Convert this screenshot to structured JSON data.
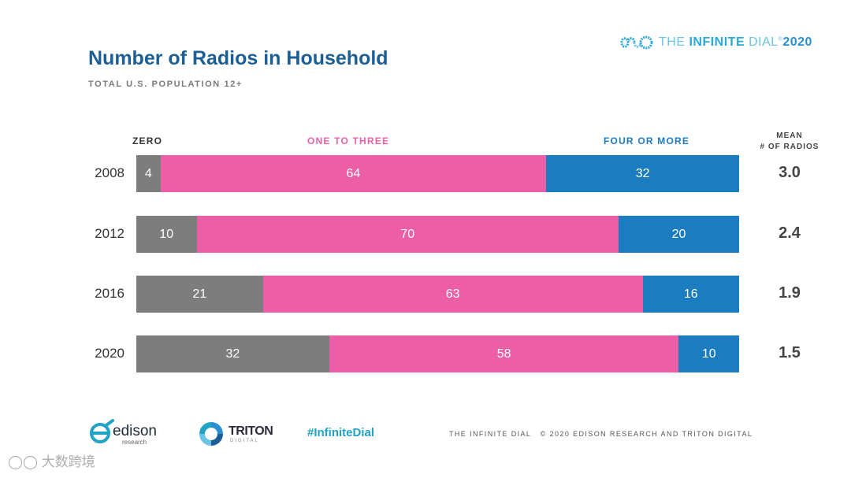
{
  "brand": {
    "the": "THE ",
    "infinite": "INFINITE",
    "dial": " DIAL",
    "year": "2020"
  },
  "chart_data": {
    "type": "bar",
    "orientation": "horizontal",
    "stacked": true,
    "title": "Number of Radios in Household",
    "subtitle": "TOTAL U.S. POPULATION 12+",
    "categories": [
      "2008",
      "2012",
      "2016",
      "2020"
    ],
    "series": [
      {
        "name": "ZERO",
        "color": "#7d7d7d",
        "values": [
          4,
          10,
          21,
          32
        ]
      },
      {
        "name": "ONE TO THREE",
        "color": "#ec5fa6",
        "values": [
          64,
          70,
          63,
          58
        ]
      },
      {
        "name": "FOUR OR MORE",
        "color": "#1b7cc0",
        "values": [
          32,
          20,
          16,
          10
        ]
      }
    ],
    "mean_header": [
      "MEAN",
      "# OF RADIOS"
    ],
    "mean_values": [
      "3.0",
      "2.4",
      "1.9",
      "1.5"
    ],
    "xlim": [
      0,
      100
    ]
  },
  "footer": {
    "hashtag": "#InfiniteDial",
    "copyright": "THE INFINITE DIAL   © 2020 EDISON RESEARCH AND TRITON DIGITAL",
    "edison_name": "edison",
    "edison_sub": "research",
    "triton_name": "TRITON",
    "triton_sub": "DIGITAL"
  },
  "watermark": "大数跨境",
  "icons": [
    "infinity-logo-icon",
    "edison-logo-icon",
    "triton-logo-icon"
  ]
}
